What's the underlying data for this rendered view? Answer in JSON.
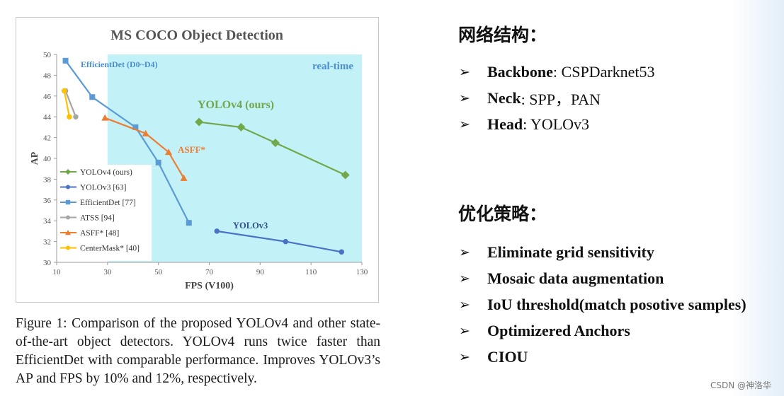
{
  "chart_data": {
    "type": "line",
    "title": "MS COCO Object Detection",
    "xlabel": "FPS (V100)",
    "ylabel": "AP",
    "xlim": [
      10,
      130
    ],
    "ylim": [
      30,
      50
    ],
    "xticks": [
      10,
      30,
      50,
      70,
      90,
      110,
      130
    ],
    "yticks": [
      30,
      32,
      34,
      36,
      38,
      40,
      42,
      44,
      46,
      48,
      50
    ],
    "region_label": "real-time",
    "realtime_from_x": 30,
    "legend_position": "left",
    "series": [
      {
        "name": "YOLOv4 (ours)",
        "color": "#70a84a",
        "marker": "diamond",
        "label": "YOLOv4 (ours)",
        "points": [
          [
            66,
            43.5
          ],
          [
            82.5,
            43.0
          ],
          [
            96,
            41.5
          ],
          [
            123.5,
            38.4
          ]
        ]
      },
      {
        "name": "YOLOv3 [63]",
        "color": "#4a72c4",
        "marker": "circle",
        "label": "YOLOv3",
        "points": [
          [
            73,
            33.0
          ],
          [
            100,
            32.0
          ],
          [
            122,
            31.0
          ]
        ]
      },
      {
        "name": "EfficientDet [77]",
        "color": "#5b9bd5",
        "marker": "square",
        "label": "EfficientDet (D0~D4)",
        "points": [
          [
            13.5,
            49.4
          ],
          [
            24,
            45.9
          ],
          [
            41,
            43.0
          ],
          [
            50,
            39.6
          ],
          [
            62,
            33.8
          ]
        ]
      },
      {
        "name": "ATSS [94]",
        "color": "#a6a6a6",
        "marker": "circle",
        "label": "",
        "points": [
          [
            13.5,
            46.5
          ],
          [
            17.5,
            44.0
          ]
        ]
      },
      {
        "name": "ASFF* [48]",
        "color": "#ed7d31",
        "marker": "triangle",
        "label": "ASFF*",
        "points": [
          [
            29,
            43.9
          ],
          [
            45,
            42.4
          ],
          [
            54,
            40.6
          ],
          [
            60,
            38.1
          ]
        ]
      },
      {
        "name": "CenterMask* [40]",
        "color": "#ffc000",
        "marker": "circle",
        "label": "",
        "points": [
          [
            13,
            46.5
          ],
          [
            15,
            44.0
          ]
        ]
      }
    ]
  },
  "caption": "Figure 1: Comparison of the proposed YOLOv4 and other state-of-the-art object detectors. YOLOv4 runs twice faster than EfficientDet with comparable performance. Improves YOLOv3’s AP and FPS by 10% and 12%, respectively.",
  "section1": {
    "title": "网络结构：",
    "items": [
      {
        "key": "Backbone",
        "value": ": CSPDarknet53"
      },
      {
        "key": "Neck",
        "value": ": SPP，PAN"
      },
      {
        "key": "Head",
        "value": ": YOLOv3"
      }
    ]
  },
  "section2": {
    "title": "优化策略：",
    "items": [
      {
        "text": "Eliminate grid sensitivity"
      },
      {
        "text": "Mosaic data augmentation"
      },
      {
        "text": "IoU threshold(match posotive samples)"
      },
      {
        "text": "Optimizered Anchors"
      },
      {
        "text": "CIOU"
      }
    ]
  },
  "bullet_glyph": "➢",
  "watermark": "CSDN @神洛华"
}
